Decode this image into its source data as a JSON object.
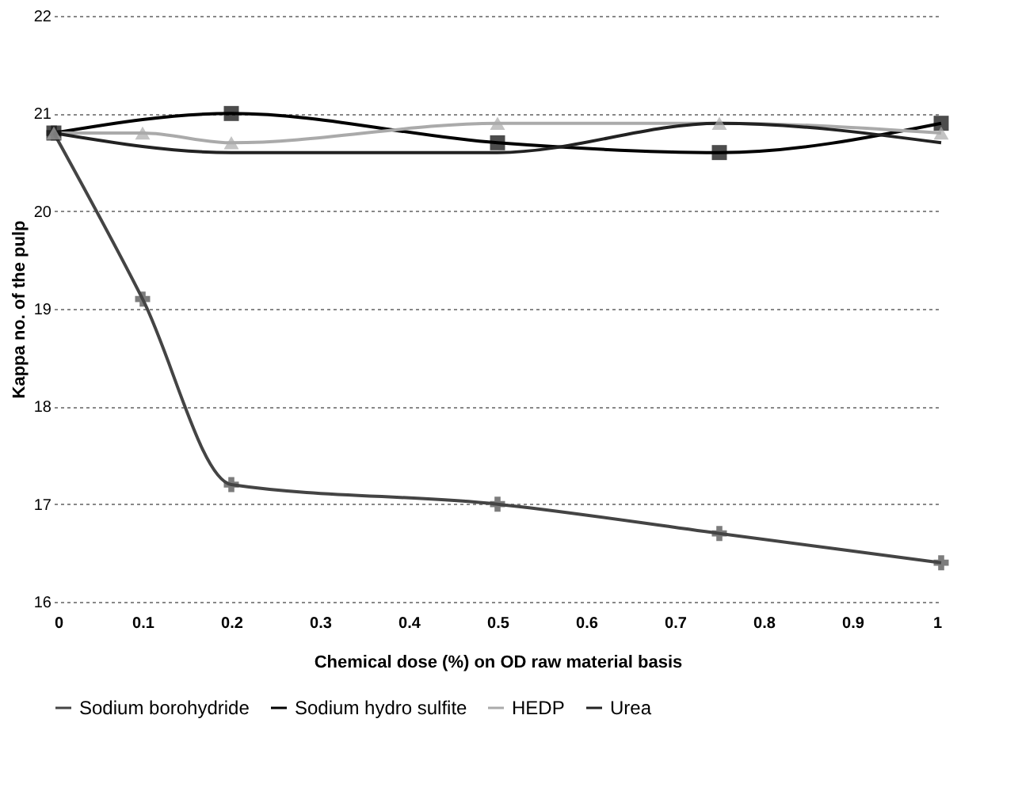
{
  "chart_data": {
    "type": "line",
    "xlabel": "Chemical dose (%) on OD raw material basis",
    "ylabel": "Kappa no. of the pulp",
    "xlim": [
      0,
      1
    ],
    "xticks": [
      0,
      0.1,
      0.2,
      0.3,
      0.4,
      0.5,
      0.6,
      0.7,
      0.8,
      0.9,
      1
    ],
    "ylim": [
      16,
      22
    ],
    "yticks": [
      16,
      17,
      18,
      19,
      20,
      21,
      22
    ],
    "grid": "y",
    "legend": "bottom",
    "line_style": "solid",
    "series": [
      {
        "name": "Sodium borohydride",
        "color": "#444444",
        "marker": "cross",
        "x": [
          0,
          0.1,
          0.2,
          0.5,
          0.75,
          1
        ],
        "values": [
          20.8,
          19.1,
          17.2,
          17.0,
          16.7,
          16.4
        ]
      },
      {
        "name": "Sodium hydro sulfite",
        "color": "#000000",
        "marker": "square",
        "x": [
          0,
          0.2,
          0.5,
          0.75,
          1
        ],
        "values": [
          20.8,
          21.0,
          20.7,
          20.6,
          20.9
        ]
      },
      {
        "name": "HEDP",
        "color": "#aaaaaa",
        "marker": "triangle",
        "x": [
          0,
          0.1,
          0.2,
          0.5,
          0.75,
          1
        ],
        "values": [
          20.8,
          20.8,
          20.7,
          20.9,
          20.9,
          20.8
        ]
      },
      {
        "name": "Urea",
        "color": "#222222",
        "marker": "none",
        "x": [
          0,
          0.2,
          0.5,
          0.75,
          1
        ],
        "values": [
          20.8,
          20.6,
          20.6,
          20.9,
          20.7
        ]
      }
    ]
  }
}
